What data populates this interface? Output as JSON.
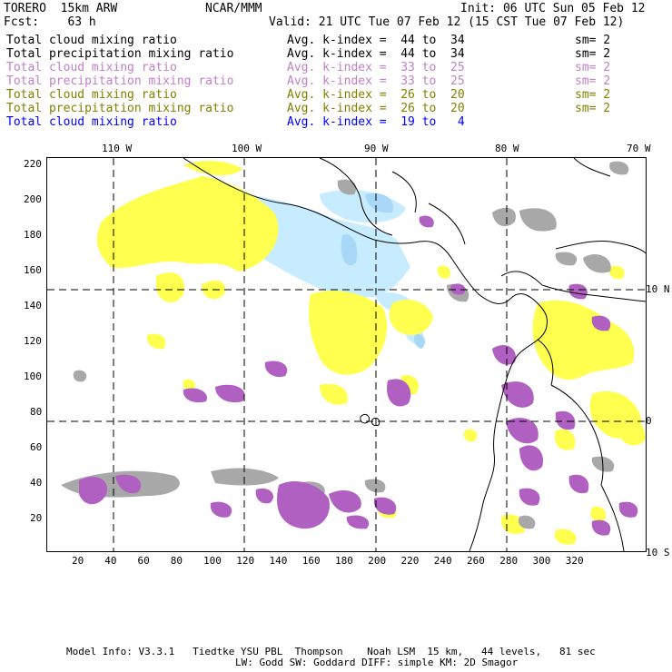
{
  "header": {
    "model": "TORERO  15km ARW",
    "org": "NCAR/MMM",
    "init": "Init: 06 UTC Sun 05 Feb 12",
    "fcst": "Fcst:    63 h",
    "valid": "Valid: 21 UTC Tue 07 Feb 12 (15 CST Tue 07 Feb 12)"
  },
  "legend": [
    {
      "field": "Total cloud mixing ratio",
      "kindex": "Avg. k-index =  44 to  34",
      "sm": "sm= 2",
      "color": "#000000"
    },
    {
      "field": "Total precipitation mixing ratio",
      "kindex": "Avg. k-index =  44 to  34",
      "sm": "sm= 2",
      "color": "#000000"
    },
    {
      "field": "Total cloud mixing ratio",
      "kindex": "Avg. k-index =  33 to  25",
      "sm": "sm= 2",
      "color": "#c080c8"
    },
    {
      "field": "Total precipitation mixing ratio",
      "kindex": "Avg. k-index =  33 to  25",
      "sm": "sm= 2",
      "color": "#c080c8"
    },
    {
      "field": "Total cloud mixing ratio",
      "kindex": "Avg. k-index =  26 to  20",
      "sm": "sm= 2",
      "color": "#808000"
    },
    {
      "field": "Total precipitation mixing ratio",
      "kindex": "Avg. k-index =  26 to  20",
      "sm": "sm= 2",
      "color": "#808000"
    },
    {
      "field": "Total cloud mixing ratio",
      "kindex": "Avg. k-index =  19 to   4",
      "sm": "",
      "color": "#0000ff"
    }
  ],
  "colors": {
    "gray": "#a8a8a8",
    "purple": "#b060c0",
    "yellow": "#ffff50",
    "lightblue": "#c8ecff",
    "blue": "#a8d8f8"
  },
  "map": {
    "lon_labels": [
      "110 W",
      "100 W",
      "90 W",
      "80 W",
      "70 W"
    ],
    "lat_labels": [
      "10 N",
      "0",
      "10 S"
    ],
    "x_ticks": [
      "20",
      "40",
      "60",
      "80",
      "100",
      "120",
      "140",
      "160",
      "180",
      "200",
      "220",
      "240",
      "260",
      "280",
      "300",
      "320"
    ],
    "y_ticks": [
      "220",
      "200",
      "180",
      "160",
      "140",
      "120",
      "100",
      "80",
      "60",
      "40",
      "20"
    ]
  },
  "footer": {
    "line1": "Model Info: V3.3.1   Tiedtke YSU PBL  Thompson    Noah LSM  15 km,   44 levels,   81 sec",
    "line2": "LW: Godd SW: Goddard DIFF: simple KM: 2D Smagor"
  }
}
